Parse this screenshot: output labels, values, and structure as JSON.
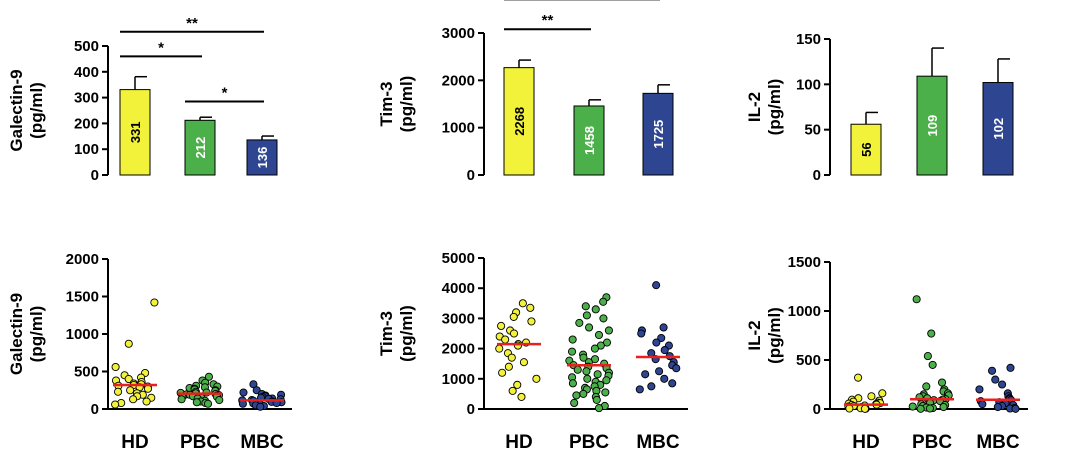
{
  "colors": {
    "HD": "#f2f23a",
    "PBC": "#4cb04a",
    "MBC": "#2e4591",
    "median": "#e8201f"
  },
  "chart_data": [
    {
      "type": "bar",
      "ylabel": [
        "Galectin-9",
        "(pg/ml)"
      ],
      "categories": [
        "HD",
        "PBC",
        "MBC"
      ],
      "values": [
        331,
        212,
        136
      ],
      "errors": [
        50,
        12,
        15
      ],
      "value_labels": [
        "331",
        "212",
        "136"
      ],
      "ylim": [
        0,
        500
      ],
      "yticks": [
        "0",
        "100",
        "200",
        "300",
        "400",
        "500"
      ],
      "significance": [
        {
          "from": 0,
          "to": 2,
          "label": "**",
          "y": 555
        },
        {
          "from": 0,
          "to": 1,
          "label": "*",
          "y": 460
        },
        {
          "from": 1,
          "to": 2,
          "label": "*",
          "y": 285
        }
      ]
    },
    {
      "type": "bar",
      "ylabel": [
        "Tim-3",
        "(pg/ml)"
      ],
      "categories": [
        "HD",
        "PBC",
        "MBC"
      ],
      "values": [
        2268,
        1458,
        1725
      ],
      "errors": [
        160,
        130,
        180
      ],
      "value_labels": [
        "2268",
        "1458",
        "1725"
      ],
      "ylim": [
        0,
        3000
      ],
      "yticks": [
        "0",
        "1000",
        "2000",
        "3000"
      ],
      "significance": [
        {
          "from": 0,
          "to": 2,
          "label": "*",
          "y": 3710
        },
        {
          "from": 0,
          "to": 1,
          "label": "**",
          "y": 3080
        }
      ]
    },
    {
      "type": "bar",
      "ylabel": [
        "IL-2",
        "(pg/ml)"
      ],
      "categories": [
        "HD",
        "PBC",
        "MBC"
      ],
      "values": [
        56,
        109,
        102
      ],
      "errors": [
        13,
        31,
        26
      ],
      "value_labels": [
        "56",
        "109",
        "102"
      ],
      "ylim": [
        0,
        150
      ],
      "yticks": [
        "0",
        "50",
        "100",
        "150"
      ],
      "significance": []
    },
    {
      "type": "scatter",
      "ylabel": [
        "Galectin-9",
        "(pg/ml)"
      ],
      "categories": [
        "HD",
        "PBC",
        "MBC"
      ],
      "ylim": [
        0,
        2000
      ],
      "yticks": [
        "0",
        "500",
        "1000",
        "1500",
        "2000"
      ],
      "medians": [
        320,
        205,
        115
      ],
      "series": [
        {
          "name": "HD",
          "values": [
            1420,
            870,
            560,
            480,
            450,
            420,
            400,
            380,
            360,
            340,
            330,
            320,
            310,
            300,
            290,
            270,
            250,
            230,
            210,
            190,
            170,
            150,
            130,
            100,
            80,
            60
          ]
        },
        {
          "name": "PBC",
          "values": [
            430,
            380,
            350,
            330,
            310,
            300,
            290,
            280,
            270,
            260,
            250,
            240,
            230,
            220,
            215,
            210,
            200,
            195,
            190,
            185,
            180,
            170,
            165,
            160,
            150,
            140,
            130,
            120,
            110,
            100,
            90,
            80,
            70
          ]
        },
        {
          "name": "MBC",
          "values": [
            330,
            250,
            220,
            200,
            190,
            180,
            170,
            160,
            150,
            140,
            135,
            130,
            120,
            115,
            110,
            100,
            95,
            90,
            80,
            75,
            70,
            60,
            50,
            40,
            30
          ]
        }
      ]
    },
    {
      "type": "scatter",
      "ylabel": [
        "Tim-3",
        "(pg/ml)"
      ],
      "categories": [
        "HD",
        "PBC",
        "MBC"
      ],
      "ylim": [
        0,
        5000
      ],
      "yticks": [
        "0",
        "1000",
        "2000",
        "3000",
        "4000",
        "5000"
      ],
      "medians": [
        2150,
        1450,
        1720
      ],
      "series": [
        {
          "name": "HD",
          "values": [
            3500,
            3350,
            3200,
            3050,
            2900,
            2750,
            2600,
            2500,
            2400,
            2300,
            2200,
            2150,
            2100,
            2000,
            1850,
            1700,
            1550,
            1400,
            1200,
            1000,
            800,
            600,
            400
          ]
        },
        {
          "name": "PBC",
          "values": [
            3700,
            3550,
            3400,
            3300,
            3100,
            3000,
            2850,
            2700,
            2600,
            2450,
            2300,
            2200,
            2100,
            2000,
            1900,
            1800,
            1700,
            1650,
            1600,
            1550,
            1500,
            1450,
            1400,
            1350,
            1300,
            1250,
            1200,
            1150,
            1100,
            1050,
            1000,
            950,
            900,
            850,
            800,
            750,
            700,
            650,
            600,
            550,
            500,
            450,
            400,
            300,
            200,
            100,
            30
          ]
        },
        {
          "name": "MBC",
          "values": [
            4100,
            2700,
            2600,
            2500,
            2350,
            2200,
            2100,
            1950,
            1850,
            1750,
            1650,
            1550,
            1450,
            1350,
            1250,
            1150,
            1000,
            850,
            750,
            650
          ]
        }
      ]
    },
    {
      "type": "scatter",
      "ylabel": [
        "IL-2",
        "(pg/ml)"
      ],
      "categories": [
        "HD",
        "PBC",
        "MBC"
      ],
      "ylim": [
        0,
        1500
      ],
      "yticks": [
        "0",
        "500",
        "1000",
        "1500"
      ],
      "medians": [
        45,
        100,
        95
      ],
      "series": [
        {
          "name": "HD",
          "values": [
            320,
            160,
            130,
            110,
            95,
            85,
            75,
            65,
            60,
            55,
            50,
            45,
            40,
            35,
            30,
            25,
            20,
            15,
            10,
            8,
            5,
            3,
            2
          ]
        },
        {
          "name": "PBC",
          "values": [
            1120,
            770,
            540,
            450,
            270,
            230,
            200,
            180,
            160,
            150,
            140,
            130,
            120,
            110,
            100,
            95,
            90,
            80,
            70,
            60,
            50,
            40,
            30,
            25,
            20,
            15,
            10,
            5,
            2
          ]
        },
        {
          "name": "MBC",
          "values": [
            420,
            390,
            300,
            250,
            200,
            160,
            130,
            110,
            100,
            90,
            80,
            70,
            60,
            50,
            40,
            30,
            20,
            10,
            5,
            2
          ]
        }
      ]
    }
  ]
}
